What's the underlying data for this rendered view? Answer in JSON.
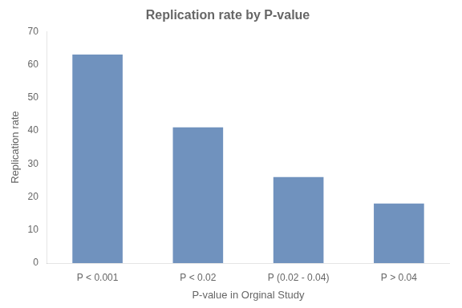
{
  "chart_data": {
    "type": "bar",
    "title": "Replication rate by P-value",
    "xlabel": "P-value in Orginal Study",
    "ylabel": "Replication rate",
    "categories": [
      "P < 0.001",
      "P < 0.02",
      "P (0.02 - 0.04)",
      "P > 0.04"
    ],
    "values": [
      63,
      41,
      26,
      18
    ],
    "color": "#7092be",
    "ylim": [
      0,
      70
    ],
    "yticks": [
      0,
      10,
      20,
      30,
      40,
      50,
      60,
      70
    ],
    "grid": false
  }
}
